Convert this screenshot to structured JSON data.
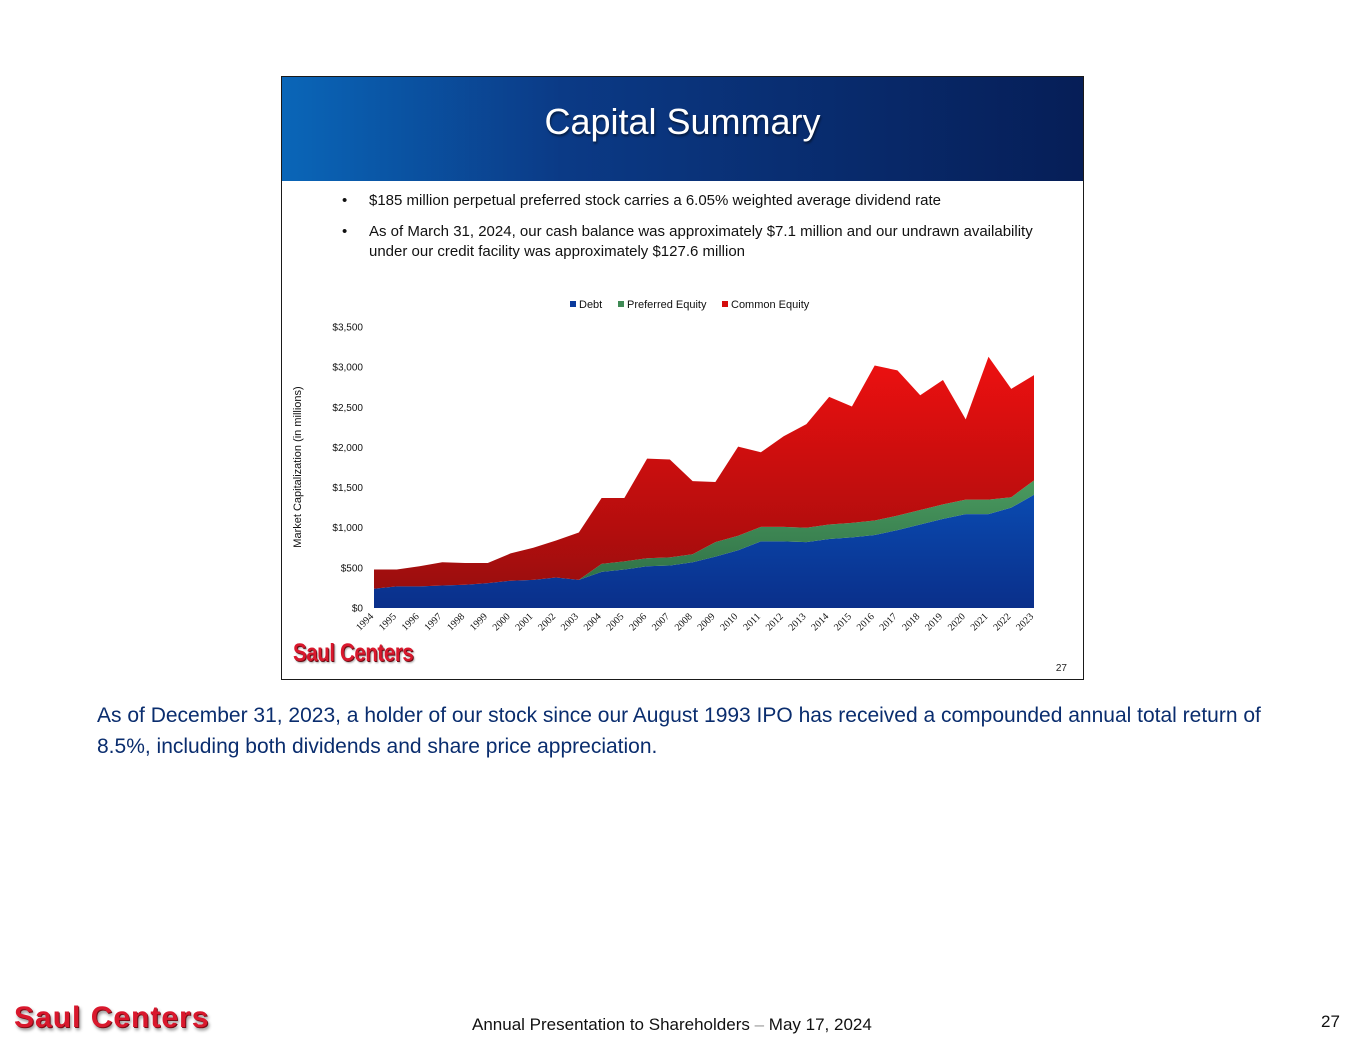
{
  "slide": {
    "title": "Capital Summary",
    "bullets": [
      "$185 million perpetual preferred stock carries a 6.05% weighted average dividend rate",
      "As of March 31, 2024, our cash balance was approximately $7.1 million and our undrawn availability under our credit facility was approximately $127.6 million"
    ],
    "logo": "Saul Centers",
    "page_number": "27"
  },
  "chart_data": {
    "type": "area",
    "stacked": true,
    "ylabel": "Market Capitalization (in millions)",
    "ylim": [
      0,
      3500
    ],
    "yticks": [
      "$0",
      "$500",
      "$1,000",
      "$1,500",
      "$2,000",
      "$2,500",
      "$3,000",
      "$3,500"
    ],
    "legend_position": "top-center",
    "categories": [
      "1994",
      "1995",
      "1996",
      "1997",
      "1998",
      "1999",
      "2000",
      "2001",
      "2002",
      "2003",
      "2004",
      "2005",
      "2006",
      "2007",
      "2008",
      "2009",
      "2010",
      "2011",
      "2012",
      "2013",
      "2014",
      "2015",
      "2016",
      "2017",
      "2018",
      "2019",
      "2020",
      "2021",
      "2022",
      "2023"
    ],
    "series": [
      {
        "name": "Debt",
        "color": "#0a3a9c",
        "values": [
          240,
          270,
          270,
          280,
          290,
          310,
          340,
          350,
          380,
          350,
          450,
          480,
          520,
          530,
          570,
          640,
          720,
          830,
          830,
          820,
          860,
          880,
          910,
          970,
          1040,
          1110,
          1170,
          1170,
          1250,
          1410
        ]
      },
      {
        "name": "Preferred Equity",
        "color": "#3f8a55",
        "values": [
          0,
          0,
          0,
          0,
          0,
          0,
          0,
          0,
          0,
          0,
          100,
          100,
          100,
          100,
          100,
          180,
          180,
          180,
          180,
          180,
          180,
          180,
          180,
          180,
          180,
          180,
          180,
          180,
          130,
          180
        ]
      },
      {
        "name": "Common Equity",
        "color": "#d40c0c",
        "values": [
          240,
          210,
          250,
          290,
          270,
          250,
          340,
          400,
          460,
          590,
          820,
          790,
          1240,
          1220,
          910,
          750,
          1110,
          930,
          1130,
          1290,
          1590,
          1450,
          1930,
          1810,
          1430,
          1550,
          1000,
          1780,
          1350,
          1310
        ]
      }
    ]
  },
  "note": "As of December 31, 2023, a holder of our stock since our August 1993 IPO has received a compounded annual total return of 8.5%, including both dividends and share price appreciation.",
  "footer": {
    "logo": "Saul Centers",
    "text_main": "Annual Presentation to Shareholders",
    "text_dash": "–",
    "text_date": "May 17, 2024",
    "page_number": "27"
  }
}
